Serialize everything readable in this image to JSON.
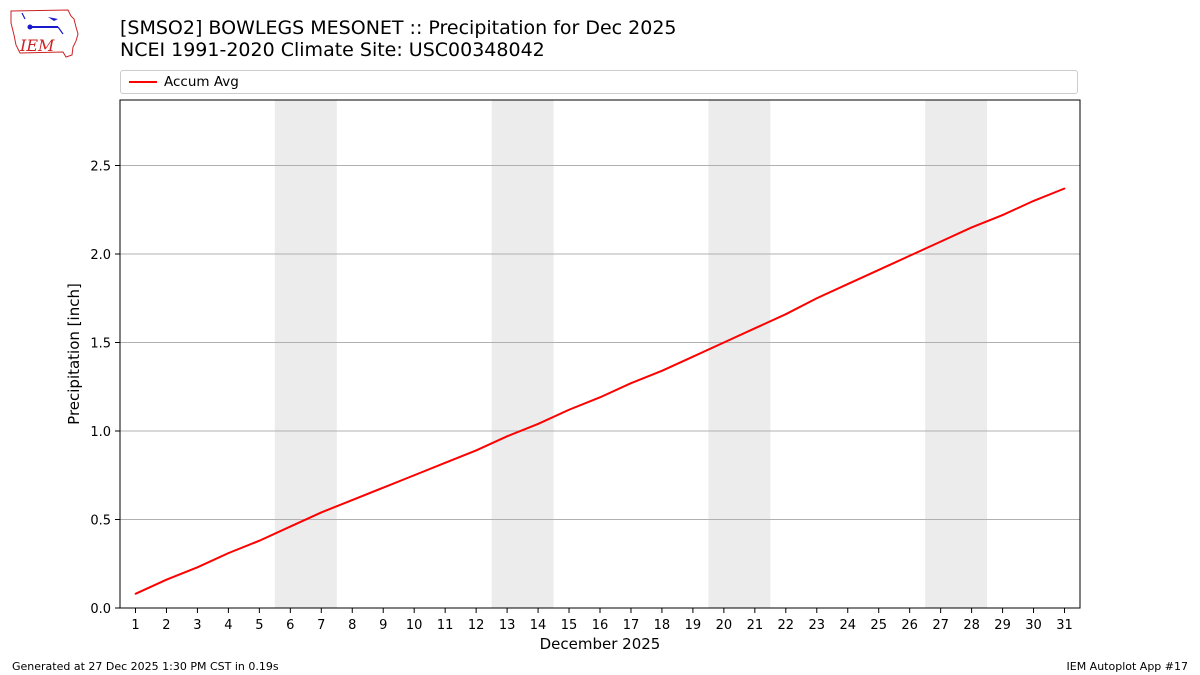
{
  "header": {
    "title_line1": "[SMSO2] BOWLEGS MESONET :: Precipitation for Dec 2025",
    "title_line2": "NCEI 1991-2020 Climate Site: USC00348042"
  },
  "logo": {
    "text": "IEM"
  },
  "footer": {
    "left": "Generated at 27 Dec 2025 1:30 PM CST in 0.19s",
    "right": "IEM Autoplot App #17"
  },
  "colors": {
    "line": "#ff0000",
    "weekend": "#ececec",
    "grid": "#b0b0b0",
    "logo": "#cc2222"
  },
  "chart_data": {
    "type": "line",
    "xlabel": "December 2025",
    "ylabel": "Precipitation [inch]",
    "x": [
      1,
      2,
      3,
      4,
      5,
      6,
      7,
      8,
      9,
      10,
      11,
      12,
      13,
      14,
      15,
      16,
      17,
      18,
      19,
      20,
      21,
      22,
      23,
      24,
      25,
      26,
      27,
      28,
      29,
      30,
      31
    ],
    "xlim": [
      0.5,
      31.5
    ],
    "ylim": [
      0,
      2.87
    ],
    "yticks": [
      0.0,
      0.5,
      1.0,
      1.5,
      2.0,
      2.5
    ],
    "ytick_labels": [
      "0.0",
      "0.5",
      "1.0",
      "1.5",
      "2.0",
      "2.5"
    ],
    "grid": "horizontal",
    "legend": "top",
    "weekend_shading": [
      [
        5.5,
        7.5
      ],
      [
        12.5,
        14.5
      ],
      [
        19.5,
        21.5
      ],
      [
        26.5,
        28.5
      ]
    ],
    "series": [
      {
        "name": "Accum Avg",
        "values": [
          0.08,
          0.16,
          0.23,
          0.31,
          0.38,
          0.46,
          0.54,
          0.61,
          0.68,
          0.75,
          0.82,
          0.89,
          0.97,
          1.04,
          1.12,
          1.19,
          1.27,
          1.34,
          1.42,
          1.5,
          1.58,
          1.66,
          1.75,
          1.83,
          1.91,
          1.99,
          2.07,
          2.15,
          2.22,
          2.3,
          2.37
        ]
      }
    ]
  }
}
